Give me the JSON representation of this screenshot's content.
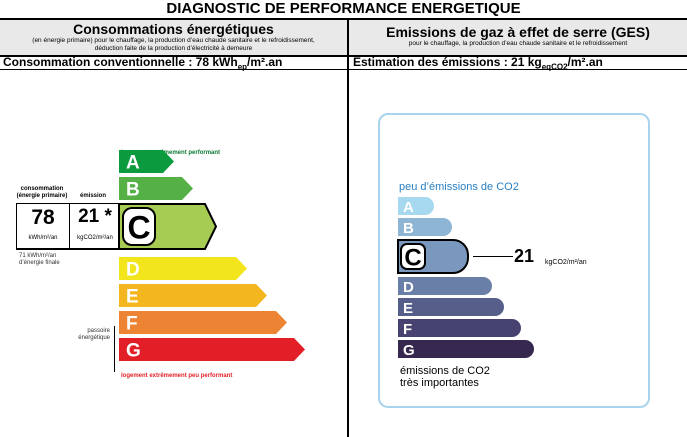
{
  "title": "DIAGNOSTIC DE PERFORMANCE ENERGETIQUE",
  "left": {
    "heading": "Consommations énergétiques",
    "subheading": "(en énergie primaire) pour le chauffage, la production d’eau chaude sanitaire et le refroidissement, déduction faite de la production d’électricité à demeure",
    "summary_prefix": "Consommation conventionnelle : 78 kWh",
    "summary_sub": "ep",
    "summary_suffix": "/m².an",
    "top_note": "logement extrêmement performant",
    "bottom_note": "logement extrêmement peu performant",
    "col_consumption": "consommation (énergie primaire)",
    "col_emission": "émission",
    "consumption_value": "78",
    "emission_value": "21 *",
    "consumption_unit": "kWh/m²/an",
    "emission_unit": "kgCO2/m²/an",
    "final_energy": "71 kWh/m²/an d’énergie finale",
    "passoire": "passoire énergétique",
    "current_class": "C",
    "classes": [
      {
        "label": "A",
        "color": "#0c9a3e"
      },
      {
        "label": "B",
        "color": "#55b045"
      },
      {
        "label": "C",
        "color": "#a7cc54"
      },
      {
        "label": "D",
        "color": "#f2e51b"
      },
      {
        "label": "E",
        "color": "#f4b61e"
      },
      {
        "label": "F",
        "color": "#ec8433"
      },
      {
        "label": "G",
        "color": "#e21f26"
      }
    ]
  },
  "right": {
    "heading": "Emissions de gaz à effet de serre (GES)",
    "subheading": "pour le chauffage, la production d’eau chaude sanitaire et le refroidissement",
    "summary_prefix": "Estimation des émissions : 21 kg",
    "summary_sub": "eqCO2",
    "summary_suffix": "/m².an",
    "top_note": "peu d’émissions de CO2",
    "bottom_note_1": "émissions de CO2",
    "bottom_note_2": "très importantes",
    "current_class": "C",
    "current_value": "21",
    "current_unit": "kgCO2/m²/an",
    "classes": [
      {
        "label": "A",
        "color": "#a6d8ef"
      },
      {
        "label": "B",
        "color": "#8fb5d5"
      },
      {
        "label": "C",
        "color": "#7a98bd"
      },
      {
        "label": "D",
        "color": "#6a7fa8"
      },
      {
        "label": "E",
        "color": "#565f8a"
      },
      {
        "label": "F",
        "color": "#474370"
      },
      {
        "label": "G",
        "color": "#36284f"
      }
    ]
  }
}
